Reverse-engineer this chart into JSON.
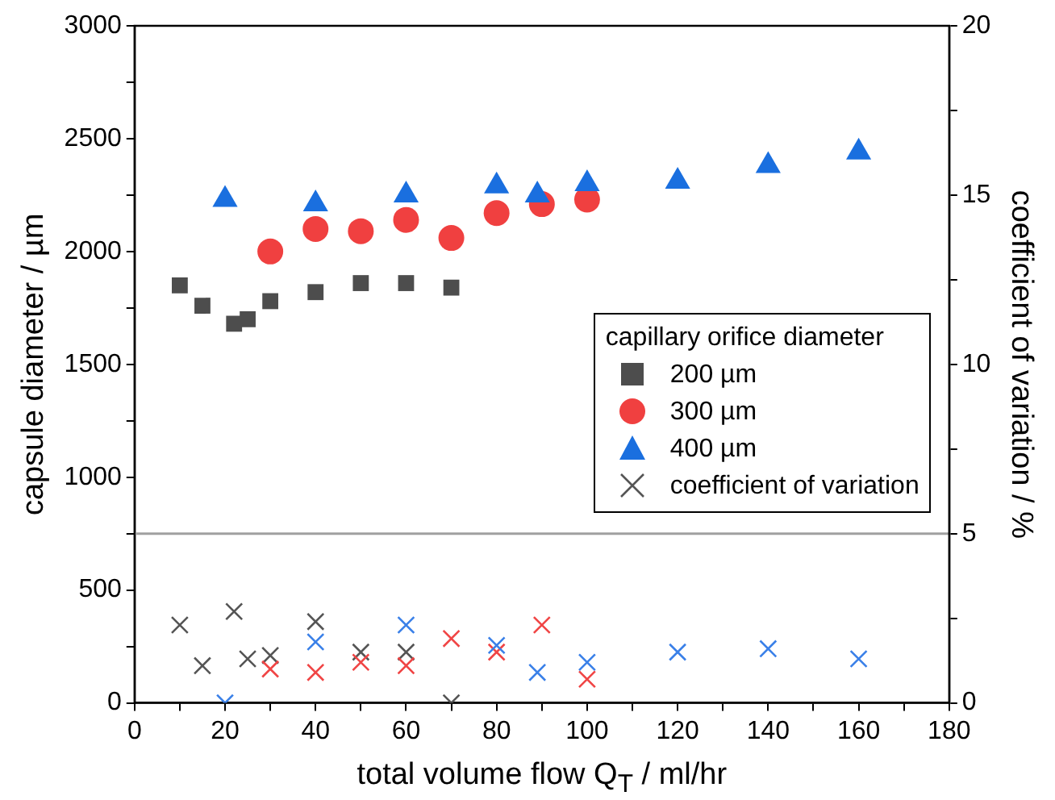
{
  "chart_data": {
    "type": "scatter",
    "xlabel": "total volume flow Q$_{T}$ / ml/hr",
    "ylabel": "capsule diameter / µm",
    "y2label": "coefficient of variation / %",
    "legend_title": "capillary orifice diameter",
    "legend": "right",
    "grid": false,
    "xlim": [
      0,
      180
    ],
    "xticks": [
      0,
      {
        "value": 10,
        "label": null
      },
      20,
      {
        "value": 30,
        "label": null
      },
      40,
      {
        "value": 50,
        "label": null
      },
      60,
      {
        "value": 70,
        "label": null
      },
      80,
      {
        "value": 90,
        "label": null
      },
      100,
      {
        "value": 110,
        "label": null
      },
      120,
      {
        "value": 130,
        "label": null
      },
      140,
      {
        "value": 150,
        "label": null
      },
      160,
      {
        "value": 170,
        "label": null
      },
      180
    ],
    "ylim": [
      0,
      3000
    ],
    "yticks": [
      0,
      {
        "value": 250,
        "label": null
      },
      500,
      {
        "value": 750,
        "label": null
      },
      1000,
      {
        "value": 1250,
        "label": null
      },
      1500,
      {
        "value": 1750,
        "label": null
      },
      2000,
      {
        "value": 2250,
        "label": null
      },
      2500,
      {
        "value": 2750,
        "label": null
      },
      3000
    ],
    "y2lim": [
      0,
      20
    ],
    "y2ticks": [
      0,
      {
        "value": 2.5,
        "label": null
      },
      5,
      {
        "value": 7.5,
        "label": null
      },
      10,
      {
        "value": 12.5,
        "label": null
      },
      15,
      {
        "value": 17.5,
        "label": null
      },
      20
    ],
    "ref_lines": [
      {
        "axis": "y2",
        "value": 5,
        "color": "#a0a0a0"
      }
    ],
    "series": [
      {
        "name": "200 µm",
        "color": "#4d4d4d",
        "marker": "square",
        "x": [
          10,
          15,
          22,
          25,
          30,
          40,
          50,
          60,
          70
        ],
        "values": [
          1850,
          1760,
          1680,
          1700,
          1780,
          1820,
          1860,
          1860,
          1840
        ]
      },
      {
        "name": "300 µm",
        "color": "#f04040",
        "marker": "circle",
        "x": [
          30,
          40,
          50,
          60,
          70,
          80,
          90,
          100
        ],
        "values": [
          2000,
          2100,
          2090,
          2140,
          2060,
          2170,
          2210,
          2230
        ]
      },
      {
        "name": "400 µm",
        "color": "#1a6fdf",
        "marker": "triangle",
        "x": [
          20,
          40,
          60,
          80,
          89,
          100,
          120,
          140,
          160
        ],
        "values": [
          2230,
          2210,
          2250,
          2290,
          2250,
          2300,
          2310,
          2380,
          2440
        ]
      },
      {
        "name": "coefficient of variation",
        "color": "#555555",
        "marker": "cross",
        "axis": "y2",
        "x": [
          10,
          15,
          22,
          25,
          30,
          40,
          50,
          60,
          70
        ],
        "values": [
          2.3,
          1.1,
          2.7,
          1.3,
          1.4,
          2.4,
          1.5,
          1.5,
          0
        ]
      },
      {
        "color": "#f04545",
        "marker": "cross",
        "axis": "y2",
        "x": [
          30,
          40,
          50,
          60,
          70,
          80,
          90,
          100
        ],
        "values": [
          1.0,
          0.9,
          1.2,
          1.1,
          1.9,
          1.5,
          2.3,
          0.7
        ]
      },
      {
        "color": "#3a80e8",
        "marker": "cross",
        "axis": "y2",
        "x": [
          20,
          40,
          60,
          80,
          89,
          100,
          120,
          140,
          160
        ],
        "values": [
          0,
          1.8,
          2.3,
          1.7,
          0.9,
          1.2,
          1.5,
          1.6,
          1.3
        ]
      }
    ]
  }
}
